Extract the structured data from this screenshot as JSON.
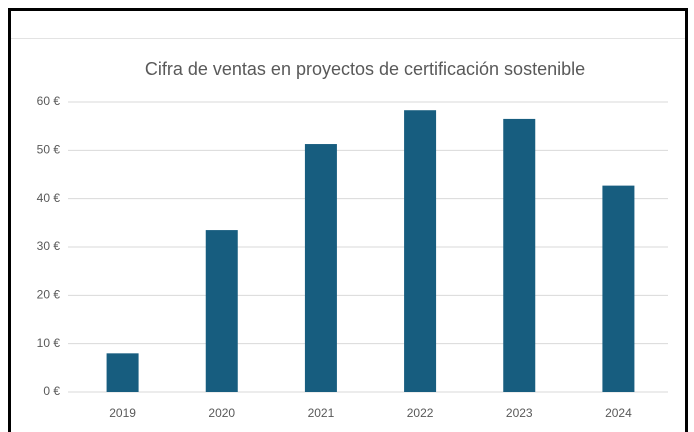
{
  "chart_data": {
    "type": "bar",
    "title": "Cifra de ventas en proyectos de certificación sostenible",
    "categories": [
      "2019",
      "2020",
      "2021",
      "2022",
      "2023",
      "2024"
    ],
    "values": [
      8,
      33.5,
      51.3,
      58.3,
      56.5,
      42.7
    ],
    "color": "#175d7f",
    "ylim": [
      0,
      60
    ],
    "yticks": [
      {
        "value": 0,
        "label": "0 €"
      },
      {
        "value": 10,
        "label": "10 €"
      },
      {
        "value": 20,
        "label": "20 €"
      },
      {
        "value": 30,
        "label": "30 €"
      },
      {
        "value": 40,
        "label": "40 €"
      },
      {
        "value": 50,
        "label": "50 €"
      },
      {
        "value": 60,
        "label": "60 €"
      }
    ],
    "grid": true
  }
}
